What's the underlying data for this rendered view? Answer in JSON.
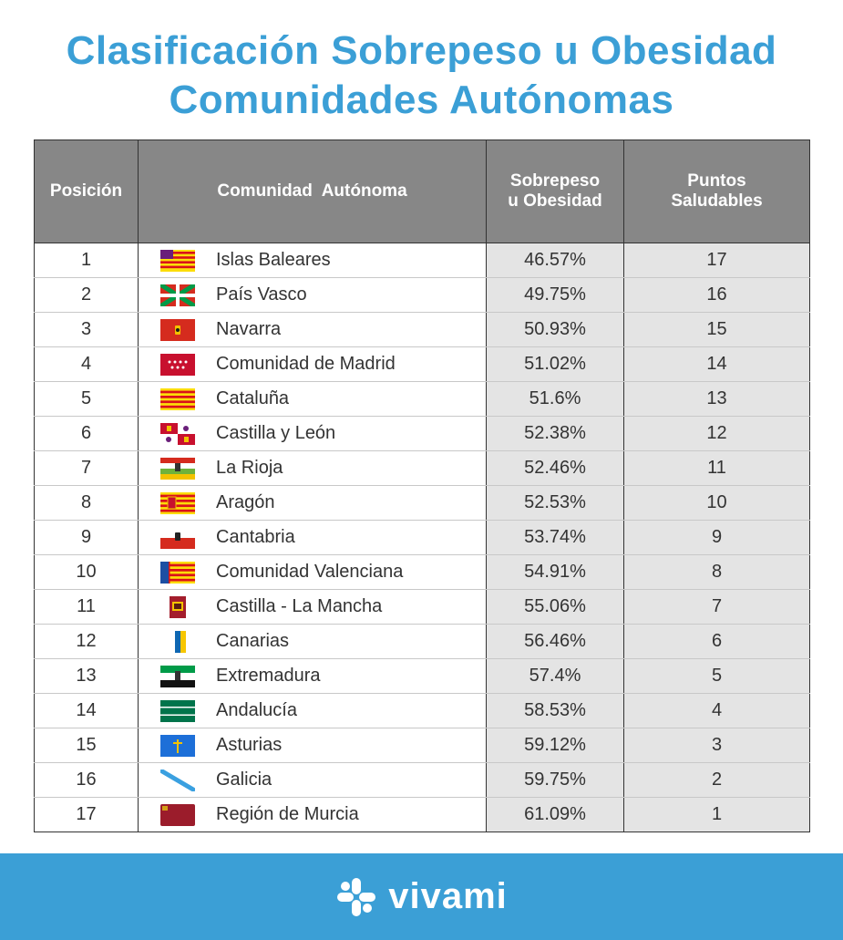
{
  "title": {
    "line1": "Clasificación Sobrepeso u Obesidad",
    "line2": "Comunidades Autónomas"
  },
  "table": {
    "headers": {
      "position": "Posición",
      "community": "Comunidad  Autónoma",
      "obesity_line1": "Sobrepeso",
      "obesity_line2": "u Obesidad",
      "points_line1": "Puntos",
      "points_line2": "Saludables"
    },
    "rows": [
      {
        "pos": "1",
        "name": "Islas Baleares",
        "pct": "46.57%",
        "pts": "17",
        "flag": "baleares-flag-icon"
      },
      {
        "pos": "2",
        "name": "País Vasco",
        "pct": "49.75%",
        "pts": "16",
        "flag": "pais-vasco-flag-icon"
      },
      {
        "pos": "3",
        "name": "Navarra",
        "pct": "50.93%",
        "pts": "15",
        "flag": "navarra-flag-icon"
      },
      {
        "pos": "4",
        "name": "Comunidad de Madrid",
        "pct": "51.02%",
        "pts": "14",
        "flag": "madrid-flag-icon"
      },
      {
        "pos": "5",
        "name": "Cataluña",
        "pct": "51.6%",
        "pts": "13",
        "flag": "cataluna-flag-icon"
      },
      {
        "pos": "6",
        "name": "Castilla y León",
        "pct": "52.38%",
        "pts": "12",
        "flag": "castilla-leon-flag-icon"
      },
      {
        "pos": "7",
        "name": "La Rioja",
        "pct": "52.46%",
        "pts": "11",
        "flag": "la-rioja-flag-icon"
      },
      {
        "pos": "8",
        "name": "Aragón",
        "pct": "52.53%",
        "pts": "10",
        "flag": "aragon-flag-icon"
      },
      {
        "pos": "9",
        "name": "Cantabria",
        "pct": "53.74%",
        "pts": "9",
        "flag": "cantabria-flag-icon"
      },
      {
        "pos": "10",
        "name": "Comunidad Valenciana",
        "pct": "54.91%",
        "pts": "8",
        "flag": "valenciana-flag-icon"
      },
      {
        "pos": "11",
        "name": "Castilla - La Mancha",
        "pct": "55.06%",
        "pts": "7",
        "flag": "castilla-mancha-flag-icon"
      },
      {
        "pos": "12",
        "name": "Canarias",
        "pct": "56.46%",
        "pts": "6",
        "flag": "canarias-flag-icon"
      },
      {
        "pos": "13",
        "name": "Extremadura",
        "pct": "57.4%",
        "pts": "5",
        "flag": "extremadura-flag-icon"
      },
      {
        "pos": "14",
        "name": "Andalucía",
        "pct": "58.53%",
        "pts": "4",
        "flag": "andalucia-flag-icon"
      },
      {
        "pos": "15",
        "name": "Asturias",
        "pct": "59.12%",
        "pts": "3",
        "flag": "asturias-flag-icon"
      },
      {
        "pos": "16",
        "name": "Galicia",
        "pct": "59.75%",
        "pts": "2",
        "flag": "galicia-flag-icon"
      },
      {
        "pos": "17",
        "name": "Región de Murcia",
        "pct": "61.09%",
        "pts": "1",
        "flag": "murcia-flag-icon"
      }
    ]
  },
  "footer": {
    "brand": "vivami",
    "logo_icon": "vivami-logo-icon"
  },
  "colors": {
    "accent": "#3b9fd6",
    "header_bg": "#878787",
    "shade": "#e4e4e4"
  }
}
